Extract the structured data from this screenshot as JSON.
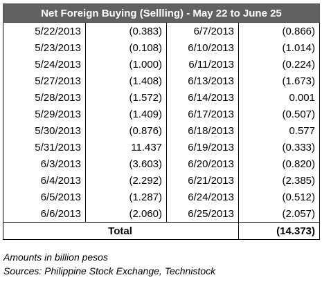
{
  "table": {
    "title": "Net Foreign Buying (Sellling) - May 22 to June 25",
    "rows": [
      {
        "date1": "5/22/2013",
        "val1": "(0.383)",
        "date2": "6/7/2013",
        "val2": "(0.866)"
      },
      {
        "date1": "5/23/2013",
        "val1": "(0.108)",
        "date2": "6/10/2013",
        "val2": "(1.014)"
      },
      {
        "date1": "5/24/2013",
        "val1": "(1.000)",
        "date2": "6/11/2013",
        "val2": "(0.224)"
      },
      {
        "date1": "5/27/2013",
        "val1": "(1.408)",
        "date2": "6/13/2013",
        "val2": "(1.673)"
      },
      {
        "date1": "5/28/2013",
        "val1": "(1.572)",
        "date2": "6/14/2013",
        "val2": "0.001"
      },
      {
        "date1": "5/29/2013",
        "val1": "(1.409)",
        "date2": "6/17/2013",
        "val2": "(0.507)"
      },
      {
        "date1": "5/30/2013",
        "val1": "(0.876)",
        "date2": "6/18/2013",
        "val2": "0.577"
      },
      {
        "date1": "5/31/2013",
        "val1": "11.437",
        "date2": "6/19/2013",
        "val2": "(0.333)"
      },
      {
        "date1": "6/3/2013",
        "val1": "(3.603)",
        "date2": "6/20/2013",
        "val2": "(0.820)"
      },
      {
        "date1": "6/4/2013",
        "val1": "(2.292)",
        "date2": "6/21/2013",
        "val2": "(2.385)"
      },
      {
        "date1": "6/5/2013",
        "val1": "(1.287)",
        "date2": "6/24/2013",
        "val2": "(0.512)"
      },
      {
        "date1": "6/6/2013",
        "val1": "(2.060)",
        "date2": "6/25/2013",
        "val2": "(2.057)"
      }
    ],
    "total_label": "Total",
    "total_value": "(14.373)"
  },
  "notes": {
    "units": "Amounts in billion pesos",
    "sources": "Sources: Philippine Stock Exchange, Technistock"
  }
}
